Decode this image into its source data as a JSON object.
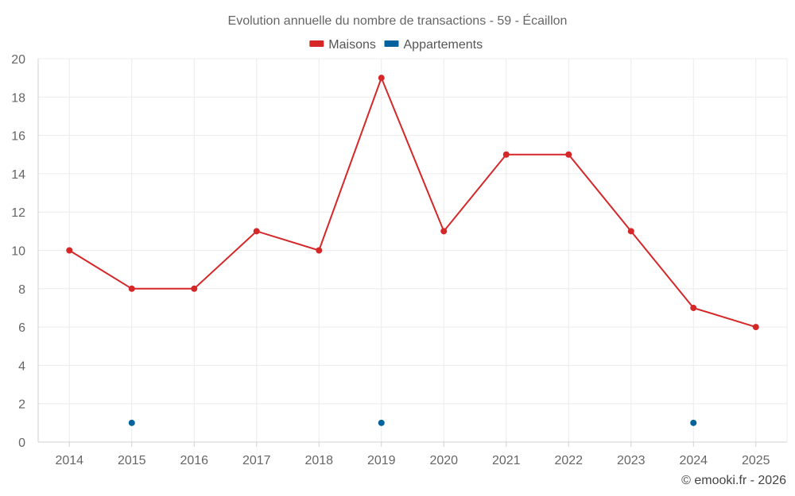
{
  "chart_data": {
    "type": "line",
    "title": "Evolution annuelle du nombre de transactions - 59 - Écaillon",
    "categories": [
      "2014",
      "2015",
      "2016",
      "2017",
      "2018",
      "2019",
      "2020",
      "2021",
      "2022",
      "2023",
      "2024",
      "2025"
    ],
    "ylim": [
      0,
      20
    ],
    "yticks": [
      0,
      2,
      4,
      6,
      8,
      10,
      12,
      14,
      16,
      18,
      20
    ],
    "grid": true,
    "legend_position": "top-center",
    "series": [
      {
        "name": "Maisons",
        "color": "#d62728",
        "values": [
          10,
          8,
          8,
          11,
          10,
          19,
          11,
          15,
          15,
          11,
          7,
          6
        ]
      },
      {
        "name": "Appartements",
        "color": "#00639e",
        "values": [
          null,
          1,
          null,
          null,
          null,
          1,
          null,
          null,
          null,
          null,
          1,
          null
        ]
      }
    ]
  },
  "credit": "© emooki.fr - 2026"
}
